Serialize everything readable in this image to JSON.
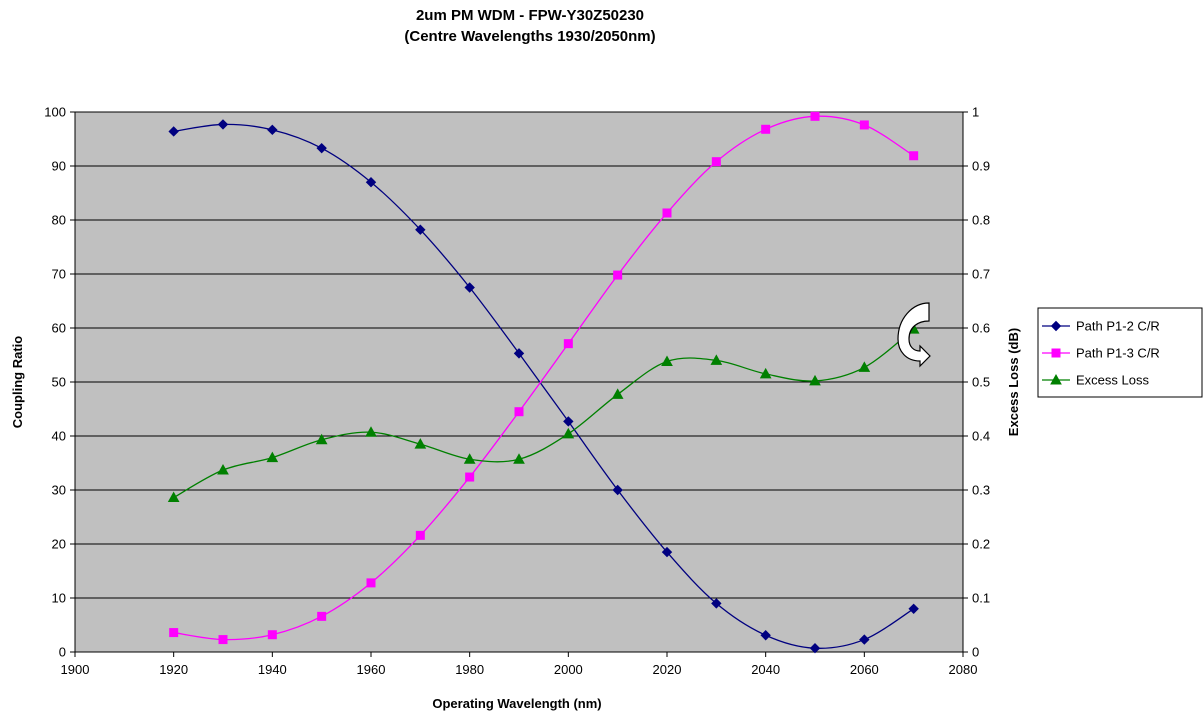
{
  "chart_data": {
    "type": "line",
    "title": "2um PM WDM - FPW-Y30Z50230",
    "subtitle": "(Centre Wavelengths 1930/2050nm)",
    "xlabel": "Operating Wavelength (nm)",
    "ylabel": "Coupling Ratio",
    "y2label": "Excess Loss (dB)",
    "xlim": [
      1900,
      2080
    ],
    "ylim": [
      0,
      100
    ],
    "y2lim": [
      0,
      1
    ],
    "xticks": [
      "1900",
      "1920",
      "1940",
      "1960",
      "1980",
      "2000",
      "2020",
      "2040",
      "2060",
      "2080"
    ],
    "yticks": [
      "0",
      "10",
      "20",
      "30",
      "40",
      "50",
      "60",
      "70",
      "80",
      "90",
      "100"
    ],
    "y2ticks": [
      "0",
      "0.1",
      "0.2",
      "0.3",
      "0.4",
      "0.5",
      "0.6",
      "0.7",
      "0.8",
      "0.9",
      "1"
    ],
    "grid": true,
    "plot_background": "#C0C0C0",
    "legend_position": "right",
    "x": [
      1920,
      1930,
      1940,
      1950,
      1960,
      1970,
      1980,
      1990,
      2000,
      2010,
      2020,
      2030,
      2040,
      2050,
      2060,
      2070
    ],
    "series": [
      {
        "name": "Path P1-2 C/R",
        "axis": "left",
        "color": "#000080",
        "marker": "diamond",
        "values": [
          96.4,
          97.7,
          96.7,
          93.3,
          87.0,
          78.2,
          67.5,
          55.3,
          42.7,
          30.0,
          18.5,
          9.0,
          3.1,
          0.7,
          2.3,
          8.0
        ]
      },
      {
        "name": "Path P1-3 C/R",
        "axis": "left",
        "color": "#FF00FF",
        "marker": "square",
        "values": [
          3.6,
          2.3,
          3.2,
          6.6,
          12.8,
          21.6,
          32.4,
          44.5,
          57.1,
          69.8,
          81.3,
          90.8,
          96.8,
          99.2,
          97.6,
          91.9
        ]
      },
      {
        "name": "Excess Loss",
        "axis": "right",
        "color": "#008000",
        "marker": "triangle",
        "values": [
          0.286,
          0.337,
          0.36,
          0.393,
          0.407,
          0.385,
          0.357,
          0.357,
          0.404,
          0.477,
          0.538,
          0.54,
          0.515,
          0.502,
          0.527,
          0.598
        ]
      }
    ],
    "annotation_icon": "curved-arrow-right-icon"
  }
}
